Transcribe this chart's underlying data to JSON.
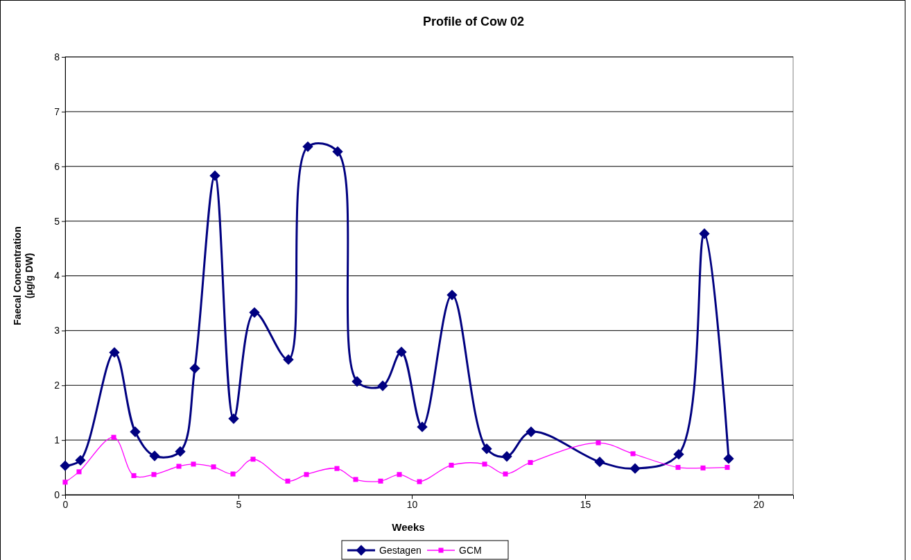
{
  "chart_data": {
    "type": "line",
    "title": "Profile of Cow 02",
    "xlabel": "Weeks",
    "ylabel": "Faecal Concentration\n(µg/g DW)",
    "xlim": [
      0,
      21
    ],
    "xticks": [
      0,
      5,
      10,
      15,
      20
    ],
    "ylim": [
      0,
      8
    ],
    "yticks": [
      0,
      1,
      2,
      3,
      4,
      5,
      6,
      7,
      8
    ],
    "grid": "y",
    "legend": "bottom",
    "series": [
      {
        "name": "Gestagen",
        "color": "#000080",
        "marker": "diamond",
        "x": [
          0,
          0.44,
          1.42,
          2.02,
          2.58,
          3.32,
          3.74,
          4.32,
          4.86,
          5.46,
          6.44,
          7.0,
          7.86,
          8.42,
          9.16,
          9.7,
          10.3,
          11.16,
          12.16,
          12.74,
          13.44,
          15.42,
          16.44,
          17.7,
          18.44,
          19.14
        ],
        "values": [
          0.53,
          0.63,
          2.6,
          1.15,
          0.71,
          0.79,
          2.31,
          5.83,
          1.39,
          3.33,
          2.47,
          6.36,
          6.27,
          2.07,
          1.99,
          2.61,
          1.24,
          3.65,
          0.84,
          0.7,
          1.15,
          0.6,
          0.48,
          0.74,
          4.77,
          0.66
        ]
      },
      {
        "name": "GCM",
        "color": "#ff00ff",
        "marker": "square",
        "x": [
          0,
          0.4,
          1.4,
          1.98,
          2.56,
          3.28,
          3.7,
          4.28,
          4.84,
          5.42,
          6.42,
          6.96,
          7.84,
          8.38,
          9.1,
          9.64,
          10.22,
          11.14,
          12.1,
          12.7,
          13.42,
          15.38,
          16.38,
          17.68,
          18.4,
          19.1
        ],
        "values": [
          0.23,
          0.42,
          1.05,
          0.35,
          0.37,
          0.52,
          0.56,
          0.51,
          0.38,
          0.65,
          0.25,
          0.37,
          0.48,
          0.28,
          0.25,
          0.37,
          0.24,
          0.54,
          0.56,
          0.38,
          0.59,
          0.95,
          0.75,
          0.5,
          0.49,
          0.5
        ]
      }
    ]
  }
}
